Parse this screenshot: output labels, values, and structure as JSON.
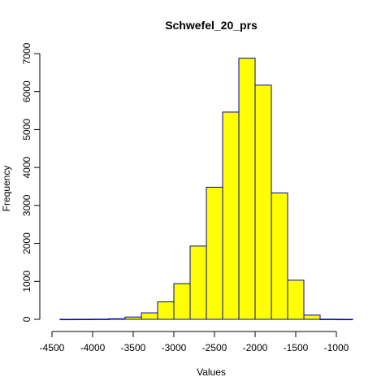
{
  "chart_data": {
    "type": "bar",
    "title": "Schwefel_20_prs",
    "xlabel": "Values",
    "ylabel": "Frequency",
    "xlim": [
      -4500,
      -800
    ],
    "ylim": [
      0,
      7000
    ],
    "x_ticks": [
      -4500,
      -4000,
      -3500,
      -3000,
      -2500,
      -2000,
      -1500,
      -1000
    ],
    "x_tick_labels": [
      "-4500",
      "-4000",
      "-3500",
      "-3000",
      "-2500",
      "-2000",
      "-1500",
      "-1000"
    ],
    "y_ticks": [
      0,
      1000,
      2000,
      3000,
      4000,
      5000,
      6000,
      7000
    ],
    "y_tick_labels": [
      "0",
      "1000",
      "2000",
      "3000",
      "4000",
      "5000",
      "6000",
      "7000"
    ],
    "bin_width": 200,
    "bins": [
      {
        "start": -4400,
        "end": -4200,
        "value": 1
      },
      {
        "start": -4200,
        "end": -4000,
        "value": 2
      },
      {
        "start": -4000,
        "end": -3800,
        "value": 5
      },
      {
        "start": -3800,
        "end": -3600,
        "value": 15
      },
      {
        "start": -3600,
        "end": -3400,
        "value": 60
      },
      {
        "start": -3400,
        "end": -3200,
        "value": 170
      },
      {
        "start": -3200,
        "end": -3000,
        "value": 460
      },
      {
        "start": -3000,
        "end": -2800,
        "value": 940
      },
      {
        "start": -2800,
        "end": -2600,
        "value": 1930
      },
      {
        "start": -2600,
        "end": -2400,
        "value": 3480
      },
      {
        "start": -2400,
        "end": -2200,
        "value": 5460
      },
      {
        "start": -2200,
        "end": -2000,
        "value": 6880
      },
      {
        "start": -2000,
        "end": -1800,
        "value": 6170
      },
      {
        "start": -1800,
        "end": -1600,
        "value": 3330
      },
      {
        "start": -1600,
        "end": -1400,
        "value": 1030
      },
      {
        "start": -1400,
        "end": -1200,
        "value": 110
      },
      {
        "start": -1200,
        "end": -1000,
        "value": 4
      },
      {
        "start": -1000,
        "end": -800,
        "value": 1
      }
    ],
    "fill_color": "#ffff00",
    "border_color": "#0000aa",
    "grid": false,
    "legend": "none"
  }
}
